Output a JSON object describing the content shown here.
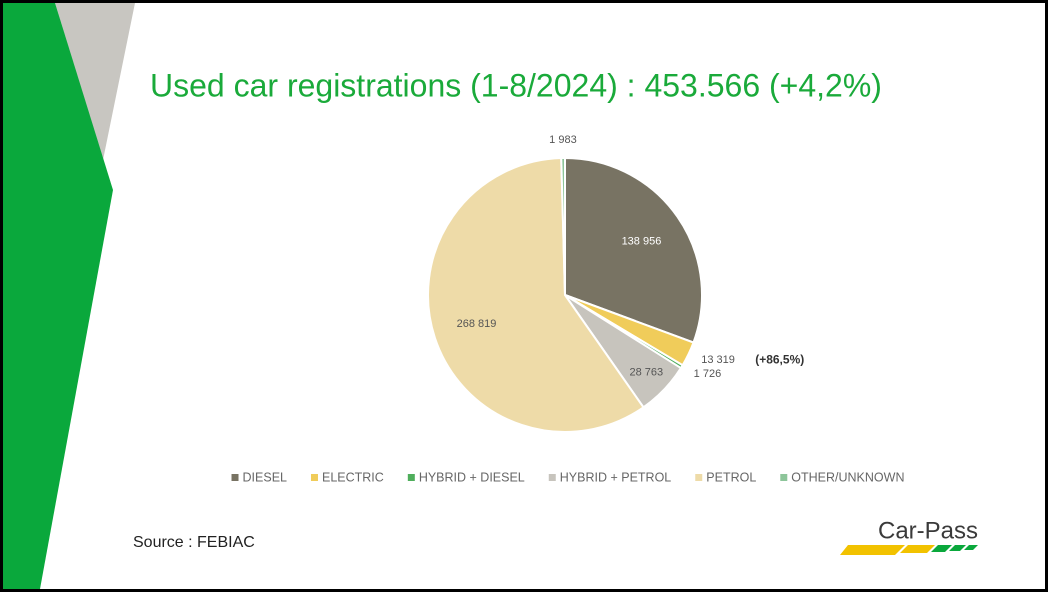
{
  "chart_data": {
    "type": "pie",
    "title": "Used car registrations (1-8/2024) : 453.566 (+4,2%)",
    "categories": [
      "DIESEL",
      "ELECTRIC",
      "HYBRID + DIESEL",
      "HYBRID + PETROL",
      "PETROL",
      "OTHER/UNKNOWN"
    ],
    "values": [
      138956,
      13319,
      1726,
      28763,
      268819,
      1983
    ],
    "value_labels": [
      "138 956",
      "13 319",
      "1 726",
      "28 763",
      "268 819",
      "1 983"
    ],
    "colors": [
      "#787363",
      "#f0cc5a",
      "#4fae5c",
      "#c7c4bd",
      "#eedba8",
      "#8dc59a"
    ],
    "annotation": "(+86,5%)",
    "legend": "bottom"
  },
  "source": "Source : FEBIAC",
  "logo": "Car-Pass"
}
